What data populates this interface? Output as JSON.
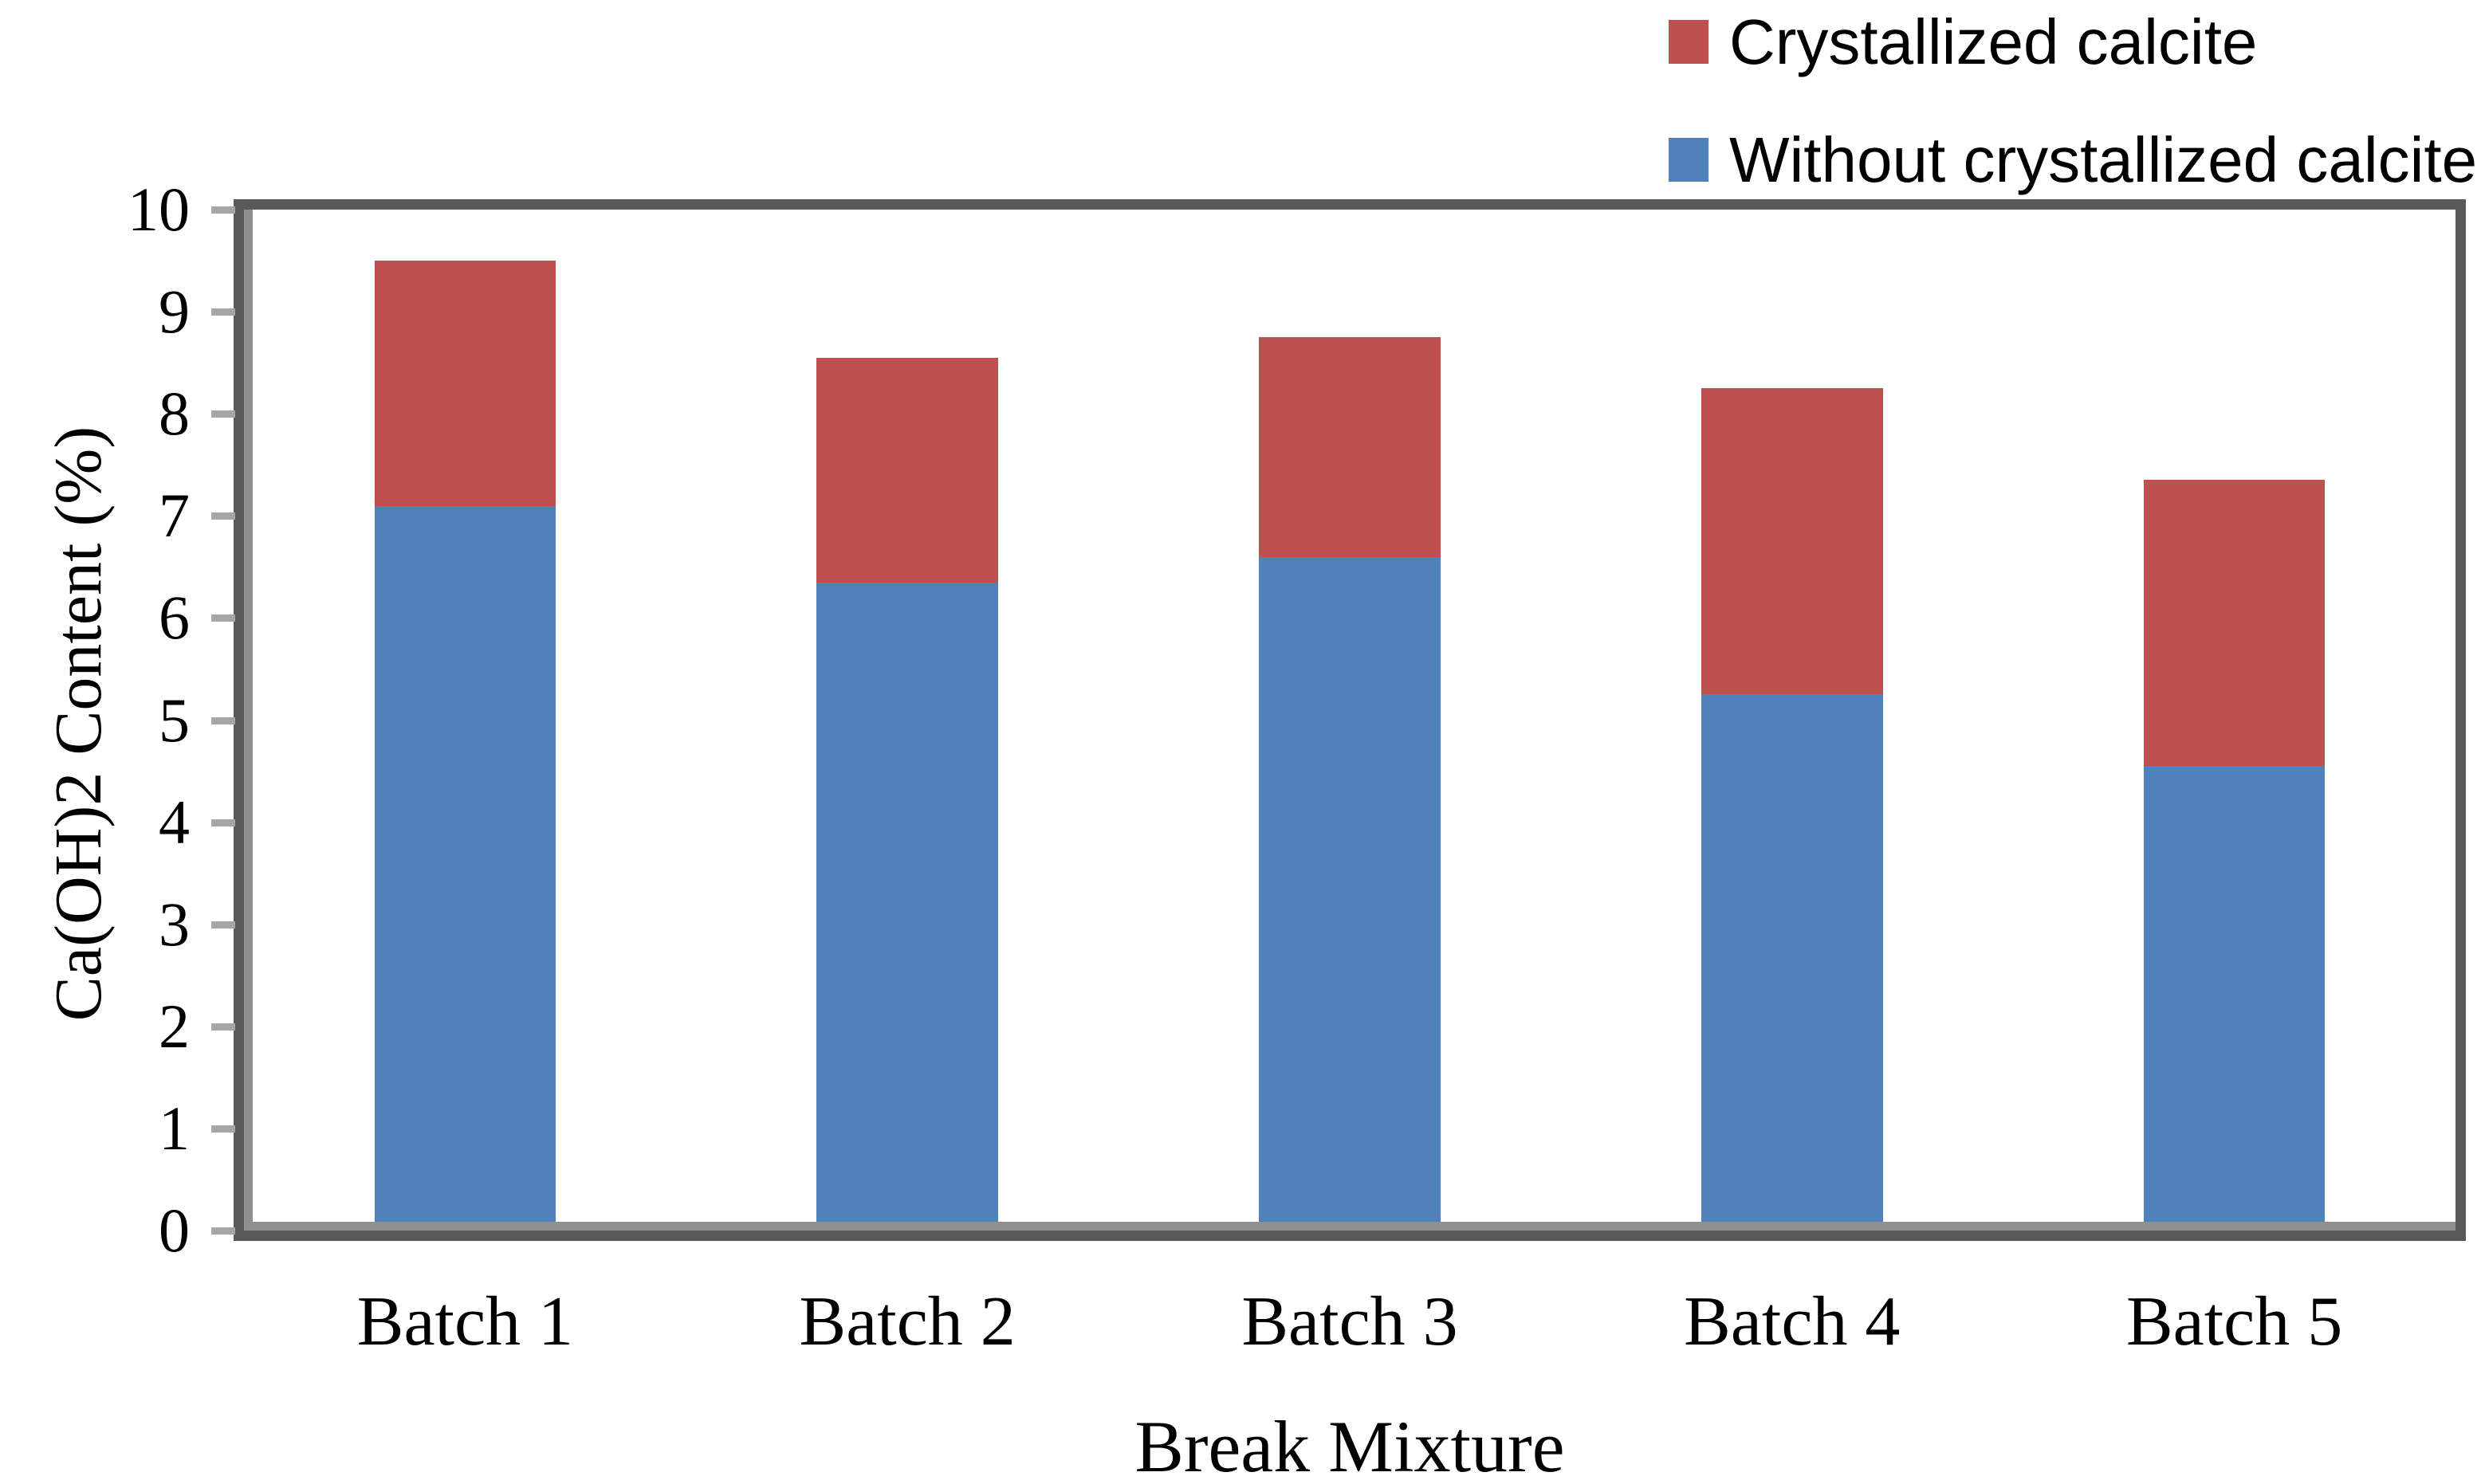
{
  "chart_data": {
    "type": "bar",
    "stacked": true,
    "title": "",
    "categories": [
      "Batch 1",
      "Batch 2",
      "Batch 3",
      "Batch 4",
      "Batch 5"
    ],
    "series": [
      {
        "name": "Without crystallized calcite",
        "color": "#4F81BD",
        "values": [
          7.1,
          6.35,
          6.6,
          5.25,
          4.55
        ]
      },
      {
        "name": "Crystallized calcite",
        "color": "#C0504D",
        "values": [
          2.4,
          2.2,
          2.15,
          3.0,
          2.8
        ]
      }
    ],
    "stack_totals": [
      9.5,
      8.55,
      8.75,
      8.25,
      7.35
    ],
    "xlabel": "Break Mixture",
    "ylabel": "Ca(OH)2  Content (%)",
    "ylim": [
      0,
      10
    ],
    "yticks": [
      0,
      1,
      2,
      3,
      4,
      5,
      6,
      7,
      8,
      9,
      10
    ],
    "grid": false,
    "legend_position": "top-right",
    "bar_width_fraction": 0.41
  },
  "legend": {
    "items": [
      {
        "label": "Crystallized calcite",
        "color": "#C0504D"
      },
      {
        "label": "Without crystallized calcite",
        "color": "#4F81BD"
      }
    ]
  },
  "colors": {
    "frame_border": "#595959",
    "frame_bevel": "#8f8f8f",
    "tick": "#a6a6a6",
    "text": "#000000",
    "background": "#ffffff"
  }
}
